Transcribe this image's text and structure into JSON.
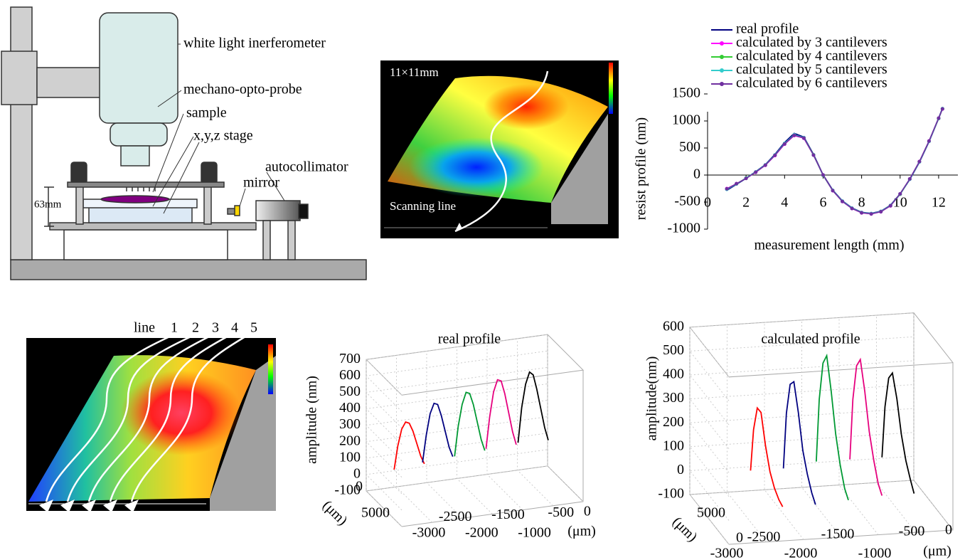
{
  "diagram": {
    "apparatus": {
      "interferometer": "white light inerferometer",
      "probe": "mechano-opto-probe",
      "sample": "sample",
      "stage": "x,y,z stage",
      "autocollimator": "autocollimator",
      "mirror": "mirror",
      "height": "63mm"
    },
    "surface_map": {
      "size": "11×11mm",
      "scan": "Scanning line"
    },
    "line_map": {
      "line": "line",
      "numbers": [
        "1",
        "2",
        "3",
        "4",
        "5"
      ]
    }
  },
  "chart_data": [
    {
      "type": "line",
      "x": [
        1,
        1.5,
        2,
        2.5,
        3,
        3.5,
        4,
        4.5,
        5,
        5.5,
        6,
        6.5,
        7,
        7.5,
        8,
        8.5,
        9,
        9.5,
        10,
        10.5,
        11,
        11.5,
        12,
        12.2
      ],
      "series": [
        {
          "name": "real profile",
          "color": "#000080",
          "values": [
            -280,
            -170,
            -60,
            60,
            190,
            380,
            600,
            770,
            700,
            380,
            0,
            -280,
            -480,
            -610,
            -690,
            -710,
            -670,
            -560,
            -350,
            -80,
            240,
            620,
            1050,
            1230
          ]
        },
        {
          "name": "calculated by 3 cantilevers",
          "color": "#ff00ff",
          "marker": "circle",
          "values": [
            -250,
            -160,
            -60,
            50,
            180,
            360,
            570,
            730,
            680,
            370,
            0,
            -290,
            -490,
            -620,
            -700,
            -720,
            -680,
            -570,
            -350,
            -70,
            250,
            630,
            1050,
            1220
          ]
        },
        {
          "name": "calculated by 4 cantilevers",
          "color": "#33cc33",
          "marker": "circle",
          "values": [
            -260,
            -165,
            -55,
            55,
            185,
            370,
            580,
            740,
            690,
            375,
            -5,
            -285,
            -485,
            -615,
            -695,
            -715,
            -675,
            -565,
            -355,
            -75,
            245,
            625,
            1045,
            1225
          ]
        },
        {
          "name": "calculated by 5 cantilevers",
          "color": "#33cccc",
          "marker": "circle",
          "values": [
            -265,
            -165,
            -58,
            58,
            188,
            372,
            585,
            745,
            692,
            372,
            -3,
            -283,
            -482,
            -612,
            -692,
            -712,
            -672,
            -562,
            -352,
            -78,
            242,
            622,
            1048,
            1228
          ]
        },
        {
          "name": "calculated by 6 cantilevers",
          "color": "#7030a0",
          "marker": "circle",
          "values": [
            -255,
            -160,
            -62,
            52,
            182,
            365,
            575,
            735,
            685,
            368,
            2,
            -288,
            -488,
            -618,
            -698,
            -718,
            -678,
            -568,
            -348,
            -72,
            248,
            628,
            1052,
            1224
          ]
        }
      ],
      "xlim": [
        0,
        13
      ],
      "ylim": [
        -1000,
        1500
      ],
      "xticks": [
        0,
        2,
        4,
        6,
        8,
        10,
        12
      ],
      "yticks": [
        -1000,
        -500,
        0,
        500,
        1000,
        1500
      ],
      "xlabel": "measurement length (mm)",
      "ylabel": "resist profile (nm)",
      "legend": "top"
    },
    {
      "type": "line3d",
      "title": "real profile",
      "zlabel": "amplitude (nm)",
      "xunit": "(μm)",
      "dunit": "(μm)",
      "xlim": [
        -3000,
        0
      ],
      "zlim": [
        -100,
        700
      ],
      "dlim": [
        0,
        5000
      ],
      "xticks": [
        -3000,
        -2500,
        -2000,
        -1500,
        -1000,
        -500,
        0
      ],
      "zticks": [
        -100,
        0,
        100,
        200,
        300,
        400,
        500,
        600,
        700
      ],
      "dticks": [
        0,
        5000
      ],
      "series": [
        {
          "color": "#ff0000",
          "x": [
            -2950,
            -2890,
            -2825,
            -2760,
            -2700,
            -2640,
            -2575,
            -2510,
            -2450
          ],
          "values": [
            10,
            150,
            250,
            290,
            280,
            230,
            150,
            70,
            20
          ]
        },
        {
          "color": "#000080",
          "x": [
            -2480,
            -2420,
            -2355,
            -2290,
            -2230,
            -2170,
            -2105,
            -2040,
            -1980
          ],
          "values": [
            30,
            190,
            320,
            380,
            370,
            300,
            200,
            100,
            40
          ]
        },
        {
          "color": "#009933",
          "x": [
            -1950,
            -1890,
            -1825,
            -1760,
            -1700,
            -1640,
            -1575,
            -1510,
            -1450
          ],
          "values": [
            40,
            220,
            350,
            420,
            410,
            340,
            230,
            120,
            50
          ]
        },
        {
          "color": "#e6007e",
          "x": [
            -1430,
            -1370,
            -1305,
            -1240,
            -1180,
            -1120,
            -1055,
            -990,
            -930
          ],
          "values": [
            60,
            250,
            400,
            470,
            460,
            380,
            260,
            140,
            60
          ]
        },
        {
          "color": "#000000",
          "x": [
            -900,
            -840,
            -775,
            -710,
            -650,
            -590,
            -525,
            -460,
            -400
          ],
          "values": [
            70,
            280,
            420,
            490,
            470,
            380,
            260,
            140,
            60
          ]
        }
      ]
    },
    {
      "type": "line3d",
      "title": "calculated profile",
      "zlabel": "amplitude(nm)",
      "xunit": "(μm)",
      "dunit": "(μm)",
      "xlim": [
        -3000,
        0
      ],
      "zlim": [
        -100,
        600
      ],
      "dlim": [
        0,
        5000
      ],
      "xticks": [
        -3000,
        -2500,
        -2000,
        -1500,
        -1000,
        -500,
        0
      ],
      "zticks": [
        -100,
        0,
        100,
        200,
        300,
        400,
        500,
        600
      ],
      "dticks": [
        0,
        5000
      ],
      "series": [
        {
          "color": "#ff0000",
          "x": [
            -2710,
            -2670,
            -2620,
            -2570,
            -2510,
            -2450,
            -2390,
            -2330,
            -2280
          ],
          "values": [
            -50,
            120,
            210,
            190,
            50,
            -60,
            -130,
            -180,
            -210
          ]
        },
        {
          "color": "#000080",
          "x": [
            -2270,
            -2230,
            -2180,
            -2130,
            -2070,
            -2010,
            -1950,
            -1890,
            -1840
          ],
          "values": [
            -50,
            180,
            300,
            310,
            180,
            20,
            -80,
            -160,
            -210
          ]
        },
        {
          "color": "#009933",
          "x": [
            -1830,
            -1790,
            -1740,
            -1690,
            -1630,
            -1570,
            -1510,
            -1450,
            -1400
          ],
          "values": [
            -30,
            230,
            380,
            410,
            260,
            80,
            -50,
            -150,
            -200
          ]
        },
        {
          "color": "#e6007e",
          "x": [
            -1380,
            -1340,
            -1290,
            -1240,
            -1180,
            -1120,
            -1060,
            -1000,
            -950
          ],
          "values": [
            -30,
            220,
            360,
            385,
            250,
            80,
            -40,
            -140,
            -190
          ]
        },
        {
          "color": "#000000",
          "x": [
            -950,
            -910,
            -860,
            -810,
            -750,
            -690,
            -630,
            -570,
            -520
          ],
          "values": [
            -30,
            180,
            300,
            320,
            210,
            60,
            -50,
            -130,
            -190
          ]
        }
      ]
    }
  ]
}
